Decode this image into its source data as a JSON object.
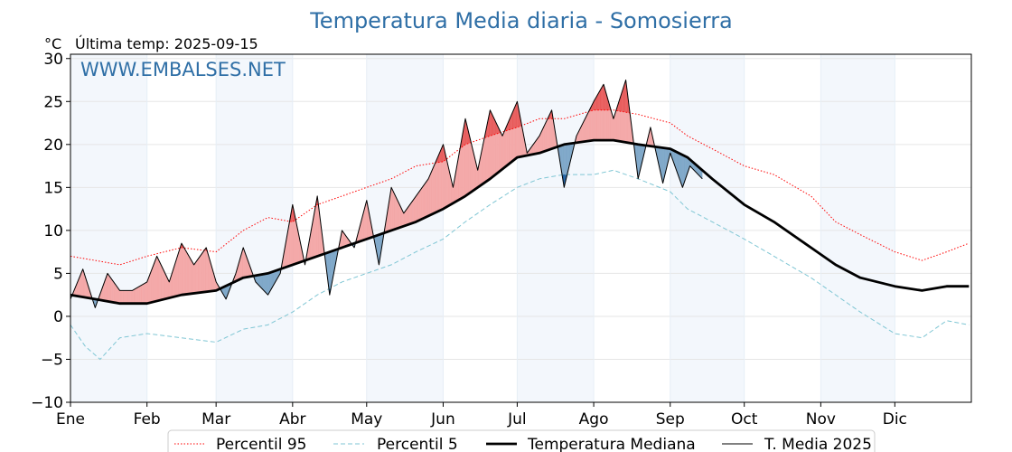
{
  "chart_data": {
    "type": "line",
    "title": "Temperatura Media diaria - Somosierra",
    "unit_label": "°C",
    "subtitle": "Última temp: 2025-09-15",
    "watermark": "WWW.EMBALSES.NET",
    "ylim": [
      -10,
      30.5
    ],
    "yticks": [
      -10,
      -5,
      0,
      5,
      10,
      15,
      20,
      25,
      30
    ],
    "ytick_labels": [
      "−10",
      "−5",
      "0",
      "5",
      "10",
      "15",
      "20",
      "25",
      "30"
    ],
    "months": [
      "Ene",
      "Feb",
      "Mar",
      "Abr",
      "May",
      "Jun",
      "Jul",
      "Ago",
      "Sep",
      "Oct",
      "Nov",
      "Dic"
    ],
    "month_start_days": [
      0,
      31,
      59,
      90,
      120,
      151,
      181,
      212,
      243,
      273,
      304,
      334
    ],
    "days_in_year": 365,
    "grid": true,
    "legend_position": "bottom",
    "series": [
      {
        "name": "Percentil 95",
        "color": "#ff0000",
        "style": "dotted",
        "x": [
          0,
          10,
          20,
          31,
          45,
          59,
          70,
          80,
          90,
          100,
          110,
          120,
          130,
          140,
          151,
          160,
          170,
          181,
          190,
          200,
          212,
          220,
          230,
          243,
          250,
          260,
          273,
          285,
          300,
          310,
          320,
          334,
          345,
          355,
          364
        ],
        "y": [
          7.0,
          6.5,
          6.0,
          7.0,
          8.0,
          7.5,
          10.0,
          11.5,
          11.0,
          13.0,
          14.0,
          15.0,
          16.0,
          17.5,
          18.0,
          20.0,
          21.0,
          22.0,
          23.0,
          23.0,
          24.0,
          24.0,
          23.5,
          22.5,
          21.0,
          19.5,
          17.5,
          16.5,
          14.0,
          11.0,
          9.5,
          7.5,
          6.5,
          7.5,
          8.5
        ]
      },
      {
        "name": "Percentil 5",
        "color": "#7fc6d4",
        "style": "dashed",
        "x": [
          0,
          6,
          12,
          20,
          31,
          45,
          59,
          70,
          80,
          90,
          100,
          110,
          120,
          130,
          140,
          151,
          160,
          170,
          181,
          190,
          200,
          212,
          220,
          230,
          243,
          250,
          260,
          273,
          285,
          300,
          310,
          320,
          334,
          345,
          355,
          364
        ],
        "y": [
          -1.0,
          -3.5,
          -5.0,
          -2.5,
          -2.0,
          -2.5,
          -3.0,
          -1.5,
          -1.0,
          0.5,
          2.5,
          4.0,
          5.0,
          6.0,
          7.5,
          9.0,
          11.0,
          13.0,
          15.0,
          16.0,
          16.5,
          16.5,
          17.0,
          16.0,
          14.5,
          12.5,
          11.0,
          9.0,
          7.0,
          4.5,
          2.5,
          0.5,
          -2.0,
          -2.5,
          -0.5,
          -1.0
        ]
      },
      {
        "name": "Temperatura Mediana",
        "color": "#000000",
        "style": "bold",
        "x": [
          0,
          10,
          20,
          31,
          45,
          59,
          70,
          80,
          90,
          100,
          110,
          120,
          130,
          140,
          151,
          160,
          170,
          181,
          190,
          200,
          212,
          220,
          230,
          243,
          250,
          260,
          273,
          285,
          300,
          310,
          320,
          334,
          345,
          355,
          364
        ],
        "y": [
          2.5,
          2.0,
          1.5,
          1.5,
          2.5,
          3.0,
          4.5,
          5.0,
          6.0,
          7.0,
          8.0,
          9.0,
          10.0,
          11.0,
          12.5,
          14.0,
          16.0,
          18.5,
          19.0,
          20.0,
          20.5,
          20.5,
          20.0,
          19.5,
          18.5,
          16.0,
          13.0,
          11.0,
          8.0,
          6.0,
          4.5,
          3.5,
          3.0,
          3.5,
          3.5
        ]
      },
      {
        "name": "T. Media 2025",
        "color": "#000000",
        "style": "solid",
        "x": [
          0,
          5,
          10,
          15,
          20,
          25,
          31,
          35,
          40,
          45,
          50,
          55,
          59,
          63,
          67,
          70,
          75,
          80,
          85,
          90,
          95,
          100,
          105,
          110,
          115,
          120,
          125,
          130,
          135,
          140,
          145,
          151,
          155,
          160,
          165,
          170,
          175,
          181,
          185,
          190,
          195,
          200,
          205,
          212,
          216,
          220,
          225,
          230,
          235,
          240,
          243,
          248,
          251,
          256
        ],
        "y": [
          2.0,
          5.5,
          1.0,
          5.0,
          3.0,
          3.0,
          4.0,
          7.0,
          4.0,
          8.5,
          6.0,
          8.0,
          4.0,
          2.0,
          5.0,
          8.0,
          4.0,
          2.5,
          5.0,
          13.0,
          6.0,
          14.0,
          2.5,
          10.0,
          8.0,
          13.5,
          6.0,
          15.0,
          12.0,
          14.0,
          16.0,
          20.0,
          15.0,
          23.0,
          17.0,
          24.0,
          21.0,
          25.0,
          19.0,
          21.0,
          24.0,
          15.0,
          21.0,
          25.0,
          27.0,
          23.0,
          27.5,
          16.0,
          22.0,
          15.5,
          19.0,
          15.0,
          17.5,
          16.0
        ]
      }
    ],
    "fill_colors": {
      "above_median": "#f4a8a8",
      "above_p95": "#e85a5a",
      "below_median": "#7fa8c9",
      "below_p5": "#1f5fa0"
    }
  }
}
